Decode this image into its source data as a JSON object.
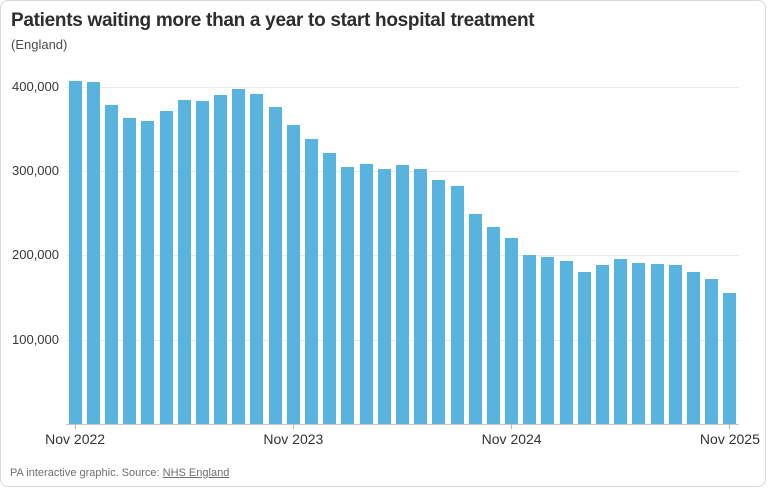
{
  "header": {
    "title": "Patients waiting more than a year to start hospital treatment",
    "subtitle": "(England)"
  },
  "footer": {
    "prefix": "PA interactive graphic. Source: ",
    "source_link": "NHS England"
  },
  "chart_data": {
    "type": "bar",
    "title": "Patients waiting more than a year to start hospital treatment",
    "subtitle": "(England)",
    "bar_color": "#58b4de",
    "grid": "horizontal",
    "legend_position": "none",
    "categories": [
      "Nov 2022",
      "Dec 2022",
      "Jan 2023",
      "Feb 2023",
      "Mar 2023",
      "Apr 2023",
      "May 2023",
      "Jun 2023",
      "Jul 2023",
      "Aug 2023",
      "Sep 2023",
      "Oct 2023",
      "Nov 2023",
      "Dec 2023",
      "Jan 2024",
      "Feb 2024",
      "Mar 2024",
      "Apr 2024",
      "May 2024",
      "Jun 2024",
      "Jul 2024",
      "Aug 2024",
      "Sep 2024",
      "Oct 2024",
      "Nov 2024",
      "Dec 2024",
      "Jan 2025",
      "Feb 2025",
      "Mar 2025",
      "Apr 2025",
      "May 2025",
      "Jun 2025",
      "Jul 2025",
      "Aug 2025",
      "Sep 2025",
      "Oct 2025",
      "Nov 2025"
    ],
    "values": [
      407000,
      406000,
      379000,
      363000,
      360000,
      371000,
      385000,
      383000,
      390000,
      397000,
      391000,
      376000,
      355000,
      338000,
      321000,
      305000,
      309000,
      302000,
      307000,
      303000,
      290000,
      282000,
      249000,
      234000,
      221000,
      200000,
      198000,
      193000,
      180000,
      189000,
      196000,
      191000,
      190000,
      189000,
      180000,
      172000,
      155000
    ],
    "xlabel": "",
    "ylabel": "",
    "ylim": [
      0,
      420000
    ],
    "y_ticks": [
      100000,
      200000,
      300000,
      400000
    ],
    "y_tick_labels": [
      "100,000",
      "200,000",
      "300,000",
      "400,000"
    ],
    "x_tick_indices": [
      0,
      12,
      24,
      36
    ],
    "x_tick_labels": [
      "Nov 2022",
      "Nov 2023",
      "Nov 2024",
      "Nov 2025"
    ]
  }
}
